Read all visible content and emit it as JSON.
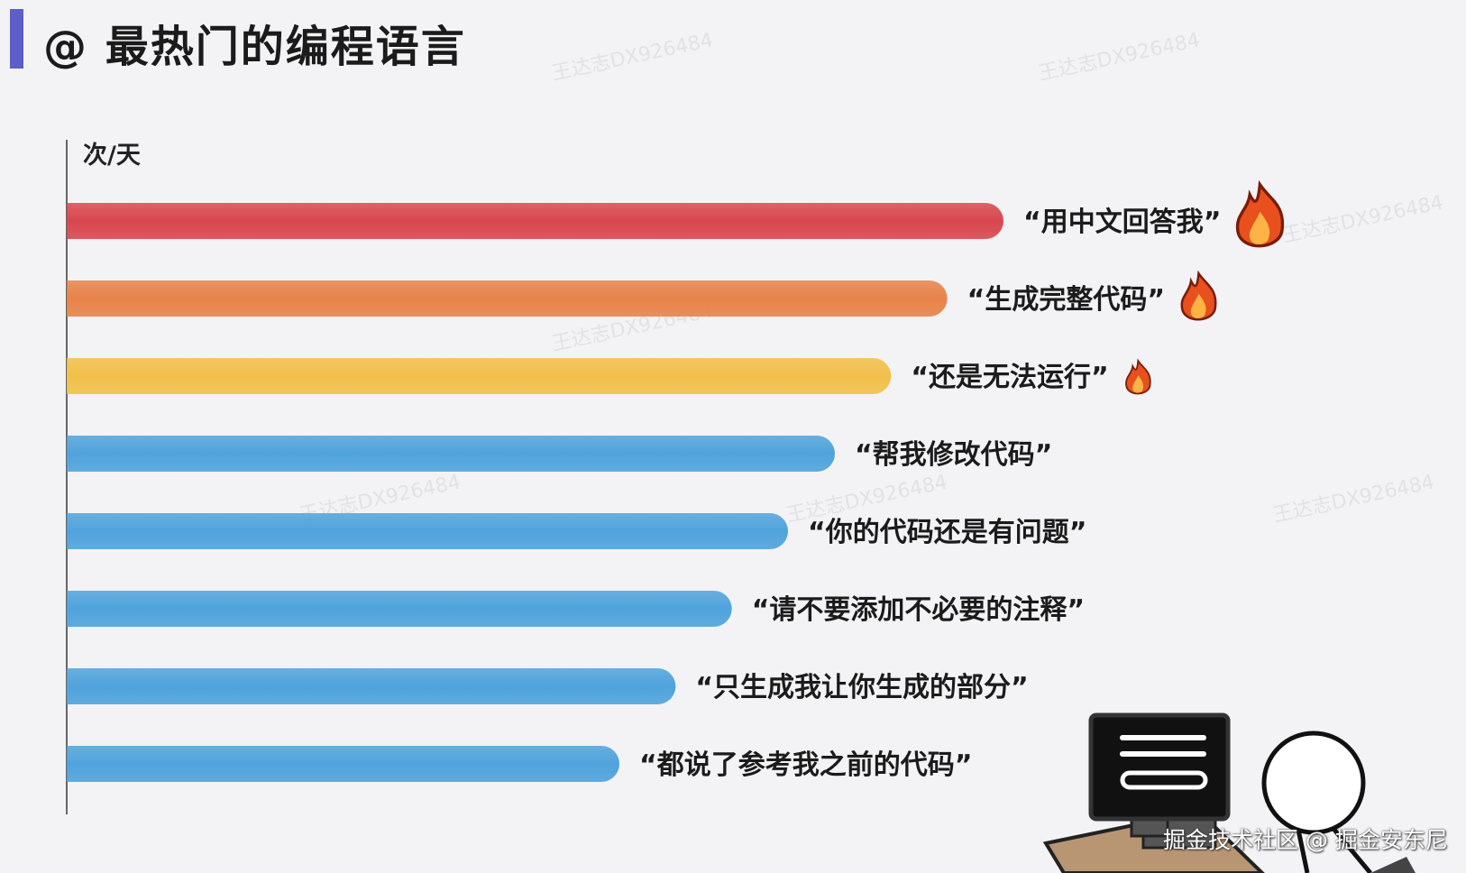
{
  "title": "@ 最热门的编程语言",
  "watermark": "王达志DX926484",
  "footer_watermark": "掘金技术社区 @ 掘金安东尼",
  "chart_data": {
    "type": "bar",
    "orientation": "horizontal",
    "title": "@ 最热门的编程语言",
    "ylabel": "次/天",
    "xlabel": "",
    "grid": false,
    "categories": [
      "“用中文回答我”",
      "“生成完整代码”",
      "“还是无法运行”",
      "“帮我修改代码”",
      "“你的代码还是有问题”",
      "“请不要添加不必要的注释”",
      "“只生成我让你生成的部分”",
      "“都说了参考我之前的代码”"
    ],
    "values": [
      100,
      94,
      88,
      82,
      77,
      71,
      65,
      59
    ],
    "xlim": [
      0,
      100
    ],
    "colors": [
      "#d9474f",
      "#e8834a",
      "#f2c04a",
      "#4fa3dc",
      "#4fa3dc",
      "#4fa3dc",
      "#4fa3dc",
      "#4fa3dc"
    ],
    "fire_icons": [
      3,
      2,
      1,
      0,
      0,
      0,
      0,
      0
    ]
  }
}
